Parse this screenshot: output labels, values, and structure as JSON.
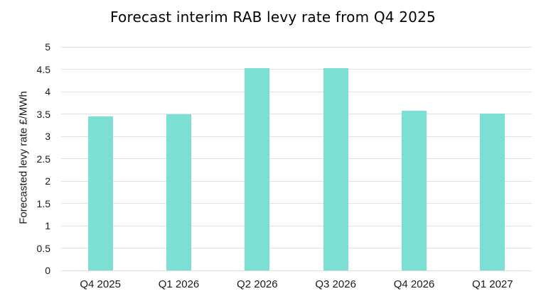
{
  "chart_data": {
    "type": "bar",
    "title": "Forecast interim RAB levy rate from Q4 2025",
    "xlabel": "",
    "ylabel": "Forecasted levy rate £/MWh",
    "categories": [
      "Q4 2025",
      "Q1 2026",
      "Q2 2026",
      "Q3 2026",
      "Q4 2026",
      "Q1 2027"
    ],
    "values": [
      3.45,
      3.49,
      4.52,
      4.53,
      3.57,
      3.51
    ],
    "ylim": [
      0,
      5
    ],
    "yticks": [
      0,
      0.5,
      1,
      1.5,
      2,
      2.5,
      3,
      3.5,
      4,
      4.5,
      5
    ],
    "grid": "horizontal",
    "legend": "none",
    "colors": {
      "bar": "#7cdfd3",
      "gridline": "#e0e0e0",
      "title_text": "#000000",
      "axis_text": "#1a1a1a",
      "background": "#ffffff"
    }
  }
}
